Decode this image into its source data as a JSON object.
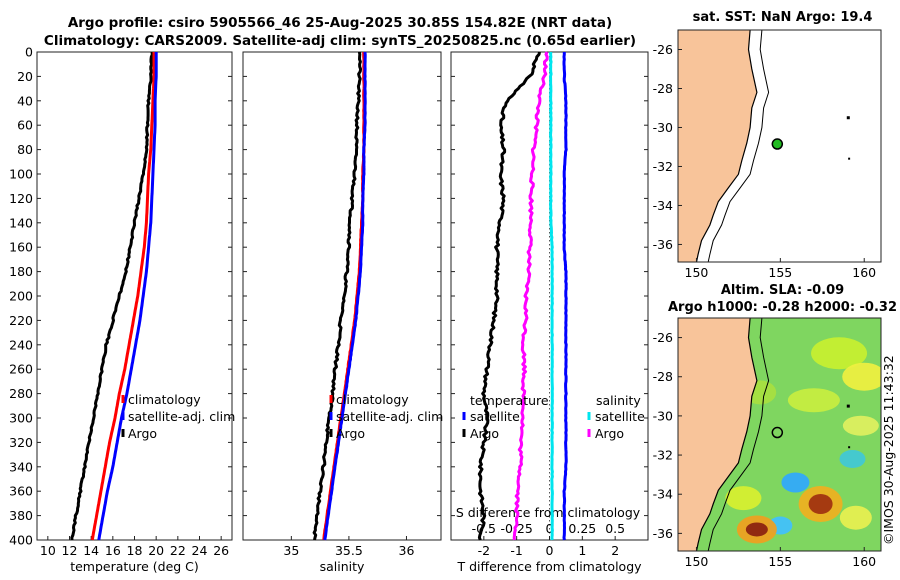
{
  "header": {
    "title_line1": "Argo profile: csiro 5905566_46 25-Aug-2025 30.85S 154.82E (NRT data)",
    "title_line2": "Climatology: CARS2009. Satellite-adj clim: synTS_20250825.nc (0.65d earlier)"
  },
  "maps": {
    "sst_title": "sat. SST: NaN Argo: 19.4",
    "sla_title_line1": "Altim. SLA: -0.09",
    "sla_title_line2": "Argo h1000: -0.28 h2000: -0.32",
    "lon_ticks": [
      "150",
      "155",
      "160"
    ],
    "lat_ticks": [
      "-26",
      "-28",
      "-30",
      "-32",
      "-34",
      "-36"
    ],
    "float_lon": 154.82,
    "float_lat": -30.85
  },
  "timestamp": "©IMOS 30-Aug-2025 11:43:32",
  "colors": {
    "argo": "#000000",
    "climatology": "#ff0000",
    "satellite": "#0000ff",
    "salinity_argo": "#ff00ff",
    "salinity_satellite": "#00ffff",
    "land": "#f8c49a",
    "float_marker": "#22bb22"
  },
  "chart_data": [
    {
      "type": "line",
      "name": "temperature",
      "xlabel": "temperature (deg C)",
      "ylabel": "",
      "xlim": [
        9,
        27
      ],
      "ylim": [
        0,
        400
      ],
      "xticks": [
        "10",
        "12",
        "14",
        "16",
        "18",
        "20",
        "22",
        "24",
        "26"
      ],
      "yticks": [
        "0",
        "20",
        "40",
        "60",
        "80",
        "100",
        "120",
        "140",
        "160",
        "180",
        "200",
        "220",
        "240",
        "260",
        "280",
        "300",
        "320",
        "340",
        "360",
        "380",
        "400"
      ],
      "legend": [
        "climatology",
        "satellite-adj. clim",
        "Argo"
      ],
      "legend_position": "lower-right",
      "series": [
        {
          "name": "Argo",
          "depth": [
            0,
            20,
            40,
            60,
            80,
            100,
            120,
            140,
            160,
            180,
            200,
            220,
            240,
            260,
            280,
            300,
            320,
            340,
            360,
            380,
            400
          ],
          "values": [
            19.6,
            19.5,
            19.3,
            19.2,
            19.1,
            18.8,
            18.4,
            18.0,
            17.6,
            17.2,
            16.6,
            16.0,
            15.4,
            15.0,
            14.6,
            14.2,
            13.8,
            13.4,
            13.0,
            12.6,
            12.2
          ]
        },
        {
          "name": "climatology",
          "depth": [
            0,
            20,
            40,
            60,
            80,
            100,
            120,
            140,
            160,
            180,
            200,
            220,
            240,
            260,
            280,
            300,
            320,
            340,
            360,
            380,
            400
          ],
          "values": [
            19.8,
            19.8,
            19.7,
            19.6,
            19.5,
            19.3,
            19.2,
            19.1,
            18.9,
            18.6,
            18.3,
            17.9,
            17.5,
            17.1,
            16.6,
            16.2,
            15.7,
            15.3,
            14.9,
            14.5,
            14.1
          ]
        },
        {
          "name": "satellite-adj. clim",
          "depth": [
            0,
            20,
            40,
            60,
            80,
            100,
            120,
            140,
            160,
            180,
            200,
            220,
            240,
            260,
            280,
            300,
            320,
            340,
            360,
            380,
            400
          ],
          "values": [
            20.0,
            20.0,
            19.9,
            19.9,
            19.8,
            19.7,
            19.6,
            19.5,
            19.3,
            19.1,
            18.8,
            18.5,
            18.1,
            17.7,
            17.3,
            16.8,
            16.4,
            16.0,
            15.5,
            15.1,
            14.7
          ]
        }
      ]
    },
    {
      "type": "line",
      "name": "salinity",
      "xlabel": "salinity",
      "xlim": [
        34.58,
        36.3
      ],
      "ylim": [
        0,
        400
      ],
      "xticks": [
        "35",
        "35.5",
        "36"
      ],
      "legend": [
        "climatology",
        "satellite-adj. clim",
        "Argo"
      ],
      "legend_position": "lower-right",
      "series": [
        {
          "name": "Argo",
          "depth": [
            0,
            20,
            40,
            60,
            80,
            100,
            120,
            140,
            160,
            180,
            200,
            220,
            240,
            260,
            280,
            300,
            320,
            340,
            360,
            380,
            400
          ],
          "values": [
            35.6,
            35.59,
            35.58,
            35.57,
            35.56,
            35.55,
            35.53,
            35.51,
            35.5,
            35.48,
            35.46,
            35.43,
            35.41,
            35.38,
            35.36,
            35.33,
            35.3,
            35.28,
            35.25,
            35.22,
            35.2
          ]
        },
        {
          "name": "climatology",
          "depth": [
            0,
            20,
            40,
            60,
            80,
            100,
            120,
            140,
            160,
            180,
            200,
            220,
            240,
            260,
            280,
            300,
            320,
            340,
            360,
            380,
            400
          ],
          "values": [
            35.63,
            35.63,
            35.63,
            35.63,
            35.63,
            35.62,
            35.62,
            35.61,
            35.6,
            35.59,
            35.57,
            35.55,
            35.52,
            35.49,
            35.46,
            35.43,
            35.4,
            35.37,
            35.34,
            35.31,
            35.28
          ]
        },
        {
          "name": "satellite-adj. clim",
          "depth": [
            0,
            20,
            40,
            60,
            80,
            100,
            120,
            140,
            160,
            180,
            200,
            220,
            240,
            260,
            280,
            300,
            320,
            340,
            360,
            380,
            400
          ],
          "values": [
            35.64,
            35.64,
            35.64,
            35.64,
            35.63,
            35.63,
            35.62,
            35.62,
            35.61,
            35.6,
            35.58,
            35.56,
            35.53,
            35.5,
            35.47,
            35.44,
            35.41,
            35.38,
            35.35,
            35.32,
            35.29
          ]
        }
      ]
    },
    {
      "type": "line",
      "name": "difference",
      "xlabel": "T difference from climatology",
      "top_xlabel": "S difference from climatology",
      "xlim": [
        -3,
        3
      ],
      "ylim": [
        0,
        400
      ],
      "xticks": [
        "-2",
        "-1",
        "0",
        "1",
        "2"
      ],
      "top_xticks": [
        "-0.5",
        "-0.25",
        "0",
        "0.25",
        "0.5"
      ],
      "legend_groups": [
        {
          "title": "temperature",
          "items": [
            "satellite",
            "Argo"
          ]
        },
        {
          "title": "salinity",
          "items": [
            "satellite",
            "Argo"
          ]
        }
      ],
      "series": [
        {
          "name": "temperature Argo",
          "depth": [
            0,
            20,
            40,
            60,
            80,
            100,
            120,
            140,
            160,
            180,
            200,
            220,
            240,
            260,
            280,
            300,
            320,
            340,
            360,
            380,
            400
          ],
          "values": [
            -0.3,
            -0.6,
            -1.3,
            -1.5,
            -1.4,
            -1.5,
            -1.4,
            -1.5,
            -1.6,
            -1.6,
            -1.6,
            -1.7,
            -1.8,
            -1.9,
            -2.0,
            -1.9,
            -2.0,
            -2.1,
            -2.1,
            -2.0,
            -2.1
          ]
        },
        {
          "name": "temperature satellite",
          "depth": [
            0,
            20,
            40,
            60,
            80,
            100,
            120,
            140,
            160,
            180,
            200,
            220,
            240,
            260,
            280,
            300,
            320,
            340,
            360,
            380,
            400
          ],
          "values": [
            0.45,
            0.45,
            0.5,
            0.5,
            0.5,
            0.45,
            0.45,
            0.45,
            0.45,
            0.5,
            0.5,
            0.5,
            0.5,
            0.5,
            0.5,
            0.5,
            0.5,
            0.5,
            0.45,
            0.45,
            0.45
          ]
        },
        {
          "name": "salinity Argo",
          "depth": [
            0,
            20,
            40,
            60,
            80,
            100,
            120,
            140,
            160,
            180,
            200,
            220,
            240,
            260,
            280,
            300,
            320,
            340,
            360,
            380,
            400
          ],
          "values": [
            -0.02,
            -0.04,
            -0.08,
            -0.1,
            -0.12,
            -0.13,
            -0.14,
            -0.14,
            -0.15,
            -0.16,
            -0.18,
            -0.18,
            -0.2,
            -0.19,
            -0.2,
            -0.2,
            -0.22,
            -0.22,
            -0.24,
            -0.25,
            -0.26
          ]
        },
        {
          "name": "salinity satellite",
          "depth": [
            0,
            20,
            40,
            60,
            80,
            100,
            120,
            140,
            160,
            180,
            200,
            220,
            240,
            260,
            280,
            300,
            320,
            340,
            360,
            380,
            400
          ],
          "values": [
            0.01,
            0.01,
            0.01,
            0.01,
            0.01,
            0.01,
            0.01,
            0.01,
            0.02,
            0.02,
            0.02,
            0.02,
            0.02,
            0.02,
            0.02,
            0.02,
            0.02,
            0.02,
            0.02,
            0.02,
            0.02
          ]
        }
      ]
    }
  ]
}
